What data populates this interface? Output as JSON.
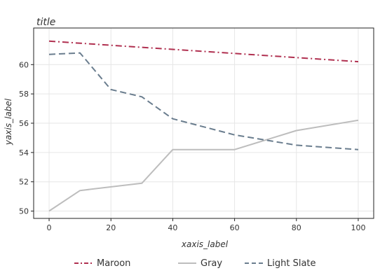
{
  "chart_data": {
    "type": "line",
    "title": "title",
    "xlabel": "xaxis_label",
    "ylabel": "yaxis_label",
    "xlim": [
      -5,
      105
    ],
    "ylim": [
      49.5,
      62.5
    ],
    "xticks": [
      0,
      20,
      40,
      60,
      80,
      100
    ],
    "yticks": [
      50,
      52,
      54,
      56,
      58,
      60
    ],
    "grid": true,
    "legend_position": "bottom",
    "series": [
      {
        "name": "Maroon",
        "color": "#b03050",
        "dash": "dashdot",
        "x": [
          0,
          100
        ],
        "y": [
          61.6,
          60.2
        ]
      },
      {
        "name": "Gray",
        "color": "#bdbdbd",
        "dash": "solid",
        "x": [
          0,
          10,
          30,
          40,
          60,
          80,
          100
        ],
        "y": [
          50.0,
          51.4,
          51.9,
          54.2,
          54.2,
          55.5,
          56.2
        ]
      },
      {
        "name": "Light Slate",
        "color": "#6a7d8e",
        "dash": "dashed",
        "x": [
          0,
          10,
          20,
          30,
          40,
          60,
          80,
          100
        ],
        "y": [
          60.7,
          60.8,
          58.3,
          57.8,
          56.3,
          55.2,
          54.5,
          54.2
        ]
      }
    ]
  }
}
